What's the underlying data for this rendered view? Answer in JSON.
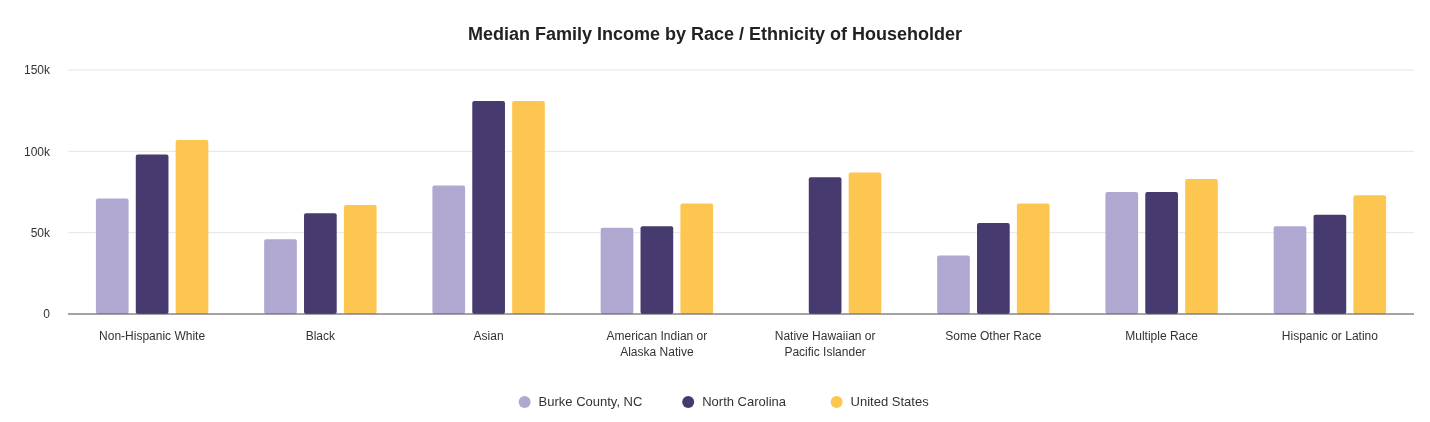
{
  "chart_data": {
    "type": "bar",
    "title": "Median Family Income by Race / Ethnicity of Householder",
    "categories": [
      "Non-Hispanic White",
      "Black",
      "Asian",
      "American Indian or Alaska Native",
      "Native Hawaiian or Pacific Islander",
      "Some Other Race",
      "Multiple Race",
      "Hispanic or Latino"
    ],
    "series": [
      {
        "name": "Burke County, NC",
        "color": "#b1a8d1",
        "values": [
          71000,
          46000,
          79000,
          53000,
          null,
          36000,
          75000,
          54000
        ]
      },
      {
        "name": "North Carolina",
        "color": "#463a6e",
        "values": [
          98000,
          62000,
          131000,
          54000,
          84000,
          56000,
          75000,
          61000
        ]
      },
      {
        "name": "United States",
        "color": "#fdc651",
        "values": [
          107000,
          67000,
          131000,
          68000,
          87000,
          68000,
          83000,
          73000
        ]
      }
    ],
    "ylim": [
      0,
      150000
    ],
    "yticks": [
      {
        "value": 0,
        "label": "0"
      },
      {
        "value": 50000,
        "label": "50k"
      },
      {
        "value": 100000,
        "label": "100k"
      },
      {
        "value": 150000,
        "label": "150k"
      }
    ],
    "grid": "y",
    "legend": "bottom"
  }
}
